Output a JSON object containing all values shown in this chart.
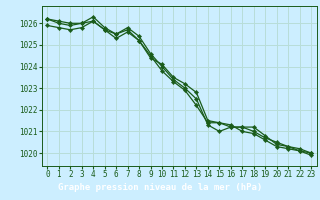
{
  "title": "Graphe pression niveau de la mer (hPa)",
  "bg_color": "#cceeff",
  "grid_color": "#b8ddd8",
  "line_color": "#1a5c1a",
  "marker_color": "#1a5c1a",
  "title_bg": "#2e6b2e",
  "title_fg": "#ffffff",
  "xlim": [
    -0.5,
    23.5
  ],
  "ylim": [
    1019.4,
    1026.8
  ],
  "yticks": [
    1020,
    1021,
    1022,
    1023,
    1024,
    1025,
    1026
  ],
  "xticks": [
    0,
    1,
    2,
    3,
    4,
    5,
    6,
    7,
    8,
    9,
    10,
    11,
    12,
    13,
    14,
    15,
    16,
    17,
    18,
    19,
    20,
    21,
    22,
    23
  ],
  "series": [
    [
      1026.2,
      1026.1,
      1026.0,
      1026.0,
      1026.1,
      1025.7,
      1025.5,
      1025.7,
      1025.2,
      1024.4,
      1024.1,
      1023.5,
      1023.2,
      1022.8,
      1021.5,
      1021.4,
      1021.2,
      1021.2,
      1021.0,
      1020.7,
      1020.5,
      1020.3,
      1020.1,
      1020.0
    ],
    [
      1026.2,
      1026.0,
      1025.9,
      1026.0,
      1026.3,
      1025.8,
      1025.5,
      1025.8,
      1025.4,
      1024.6,
      1024.0,
      1023.4,
      1023.0,
      1022.5,
      1021.3,
      1021.0,
      1021.2,
      1021.2,
      1021.2,
      1020.8,
      1020.4,
      1020.3,
      1020.2,
      1020.0
    ],
    [
      1025.9,
      1025.8,
      1025.7,
      1025.8,
      1026.1,
      1025.7,
      1025.3,
      1025.6,
      1025.2,
      1024.5,
      1023.8,
      1023.3,
      1022.9,
      1022.2,
      1021.4,
      1021.4,
      1021.3,
      1021.0,
      1020.9,
      1020.6,
      1020.3,
      1020.2,
      1020.1,
      1019.9
    ]
  ]
}
